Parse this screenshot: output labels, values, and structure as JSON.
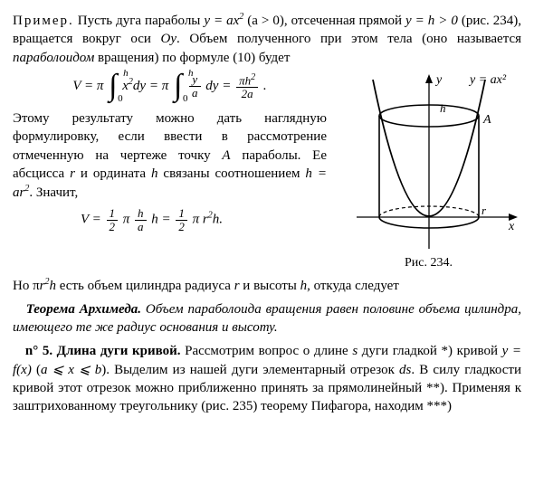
{
  "para1_a": "Пример.",
  "para1_b": " Пусть дуга параболы ",
  "para1_c": "y = ax",
  "para1_c2": "2",
  "para1_d": " (a > 0), отсеченная прямой ",
  "para1_e": "y = h > 0",
  "para1_f": " (рис. 234), вращается вокруг оси ",
  "para1_g": "Oy",
  "para1_h": ". Объем полученного при этом тела (оно называется ",
  "para1_i": "параболоидом",
  "para1_j": " вращения) по формуле (10) будет",
  "formula1_html": "V = π <span class=\"intg\"><span class=\"up\">h</span><span class=\"sym\">∫</span><span class=\"lo\">0</span></span> x<sup>2</sup>dy = π <span class=\"intg\"><span class=\"up\">h</span><span class=\"sym\">∫</span><span class=\"lo\">0</span></span> <span class=\"frac\"><span class=\"num\">y</span><span class=\"den\">a</span></span> dy = <span class=\"frac\"><span class=\"num\">πh<sup>2</sup></span><span class=\"den\">2a</span></span> .",
  "para2": "Этому результату можно дать наглядную формулировку, если ввести в рассмотрение отмеченную на чертеже точку ",
  "para2_A": "A",
  "para2_b": " параболы. Ее абсцисса ",
  "para2_r": "r",
  "para2_c": " и ордината ",
  "para2_h": "h",
  "para2_d": " связаны соотношением ",
  "para2_rel": "h = ar",
  "para2_rel2": "2",
  "para2_e": ". Значит,",
  "formula2_html": "V = <span class=\"frac\"><span class=\"num\">1</span><span class=\"den\">2</span></span> π <span class=\"frac\"><span class=\"num\">h</span><span class=\"den\">a</span></span> h = <span class=\"frac\"><span class=\"num\">1</span><span class=\"den\">2</span></span> π r<sup>2</sup>h.",
  "fig_caption": "Рис. 234.",
  "fig_label_y": "y",
  "fig_label_x": "x",
  "fig_label_eq": "y = ax²",
  "fig_label_h": "h",
  "fig_label_A": "A",
  "fig_label_r": "r",
  "para3_a": "Но π",
  "para3_b": "r",
  "para3_b2": "2",
  "para3_c": "h",
  "para3_d": " есть объем цилиндра радиуса ",
  "para3_e": "r",
  "para3_f": " и высоты ",
  "para3_g": "h",
  "para3_h": ", откуда следует",
  "theorem_a": "Теорема Архимеда.",
  "theorem_b": " Объем параболоида вращения равен половине объема цилиндра, имеющего те же радиус основания и высоту.",
  "para4_a": "n° 5. Длина дуги кривой.",
  "para4_b": " Рассмотрим вопрос о длине ",
  "para4_s": "s",
  "para4_c": " дуги гладкой *) кривой ",
  "para4_yfx": "y = f(x)",
  "para4_d": " (",
  "para4_ab": "a ⩽ x ⩽ b",
  "para4_e": "). Выделим из нашей дуги элементарный отрезок ",
  "para4_ds": "ds",
  "para4_f": ". В силу гладкости кривой этот отрезок можно приближенно принять за прямолинейный **). Применяя к заштрихованному треугольнику (рис. 235) теорему Пифагора, находим ***)"
}
